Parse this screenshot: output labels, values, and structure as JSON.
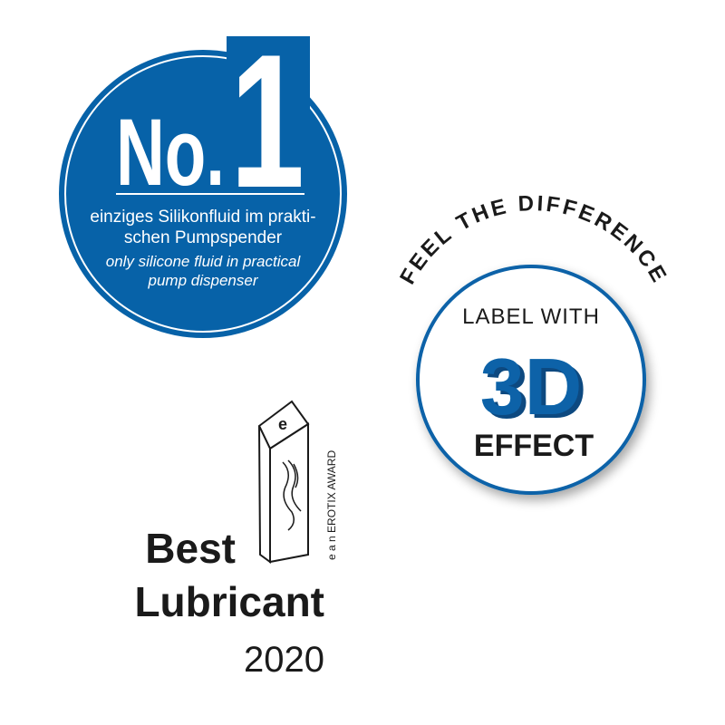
{
  "colors": {
    "brand_blue": "#0762A8",
    "dark_blue": "#0A4A80",
    "text_black": "#1a1a1a"
  },
  "badge_no1": {
    "headline_no": "No.",
    "headline_num": "1",
    "german_line1": "einziges Silikonfluid im prakti-",
    "german_line2": "schen Pumpspender",
    "english_line1": "only silicone fluid in practical",
    "english_line2": "pump dispenser"
  },
  "badge_3d": {
    "arc_text": "FEEL THE DIFFERENCE",
    "line1": "LABEL WITH",
    "big": "3D",
    "line3": "EFFECT"
  },
  "award": {
    "trophy_letter": "e",
    "vertical_text": "e a n  EROTIX AWARD",
    "title_line1": "Best",
    "title_line2": "Lubricant",
    "year": "2020"
  }
}
